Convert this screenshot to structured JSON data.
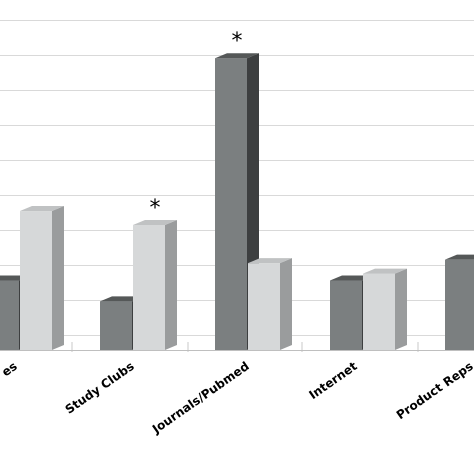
{
  "chart_data": {
    "type": "bar",
    "categories": [
      "es",
      "Study Clubs",
      "Journals/Pubmed",
      "Internet",
      "Product Reps"
    ],
    "series": [
      {
        "values": [
          2.0,
          1.4,
          8.4,
          2.0,
          2.6
        ],
        "color": "#7b7f80"
      },
      {
        "values": [
          4.0,
          3.6,
          2.5,
          2.2,
          null
        ],
        "color": "#d6d8d9"
      }
    ],
    "annotations": [
      {
        "category": "Study Clubs",
        "series": 1,
        "text": "*"
      },
      {
        "category": "Journals/Pubmed",
        "series": 0,
        "text": "*"
      }
    ],
    "ylim": [
      0,
      9.5
    ],
    "grid": true,
    "legend": "none"
  }
}
